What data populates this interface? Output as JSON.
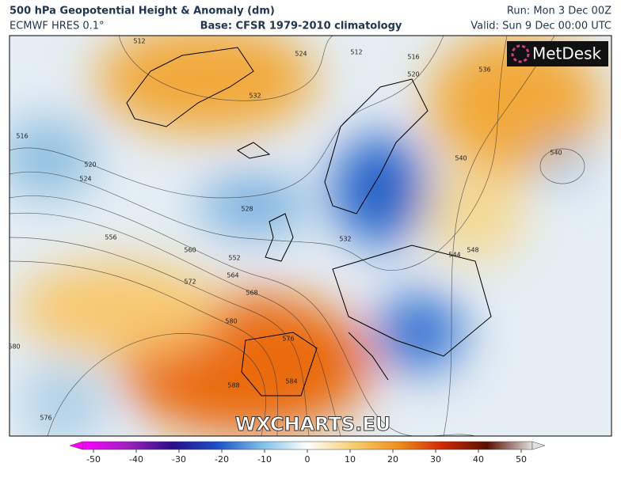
{
  "header": {
    "title": "500 hPa Geopotential Height & Anomaly (dm)",
    "model": "ECMWF HRES 0.1°",
    "base": "Base: CFSR 1979-2010 climatology",
    "run": "Run: Mon 3 Dec 00Z",
    "valid": "Valid: Sun 9 Dec 00:00 UTC"
  },
  "logo": "MetDesk",
  "watermark": "WXCHARTS.EU",
  "contour_labels": [
    512,
    524,
    532,
    516,
    520,
    524,
    528,
    556,
    560,
    552,
    572,
    564,
    568,
    580,
    576,
    588,
    584,
    580,
    576,
    540,
    540,
    544,
    548,
    536,
    516,
    520,
    512,
    532
  ],
  "colorbar": {
    "lim": [
      -50,
      50
    ],
    "ticks": [
      -50,
      -40,
      -30,
      -20,
      -10,
      0,
      10,
      20,
      30,
      40,
      50
    ]
  }
}
